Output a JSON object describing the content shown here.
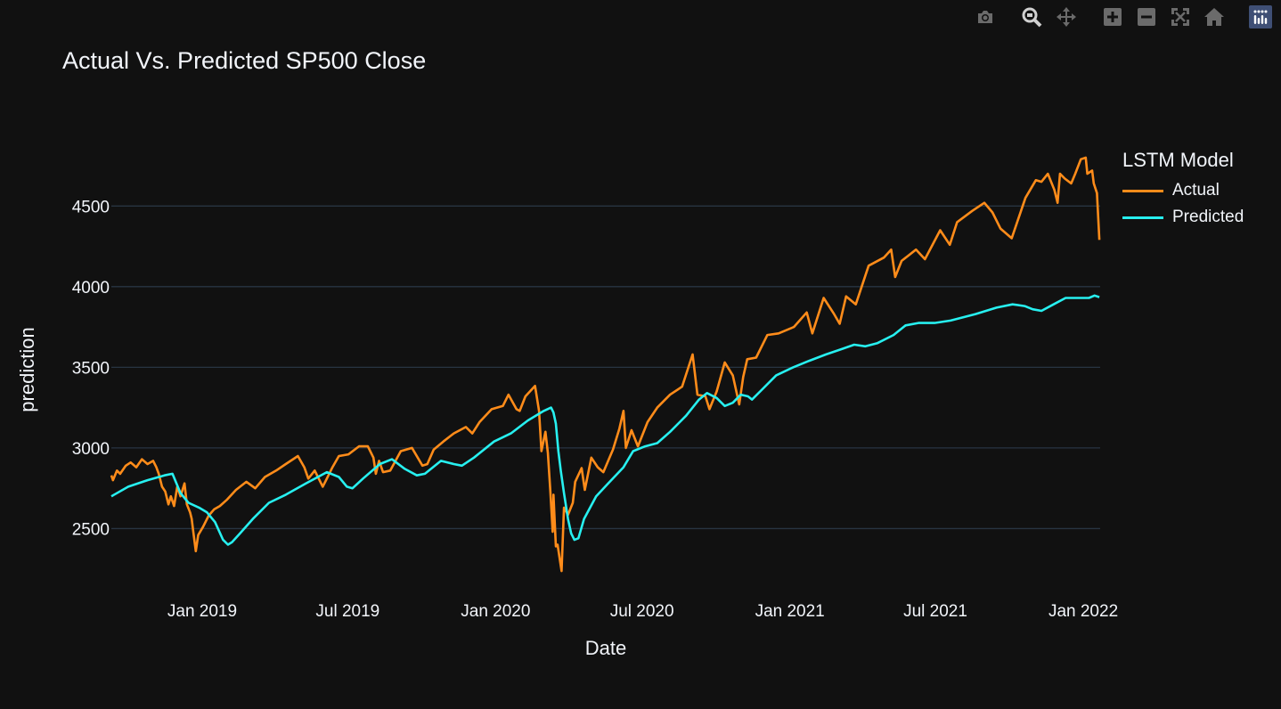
{
  "toolbar": {
    "buttons": [
      {
        "id": "camera",
        "icon": "camera-icon"
      },
      {
        "id": "zoom",
        "icon": "zoom-icon"
      },
      {
        "id": "pan",
        "icon": "pan-icon"
      },
      {
        "id": "zoom-in",
        "icon": "zoom-in-icon"
      },
      {
        "id": "zoom-out",
        "icon": "zoom-out-icon"
      },
      {
        "id": "autoscale",
        "icon": "autoscale-icon"
      },
      {
        "id": "reset",
        "icon": "home-icon"
      },
      {
        "id": "plotly-logo",
        "icon": "plotly-logo-icon"
      }
    ]
  },
  "colors": {
    "background": "#111111",
    "grid": "#283442",
    "text": "#f2f5fa",
    "actual": "#ff8c1a",
    "predicted": "#27f0f0",
    "modebar": "#6b6b6b",
    "logo": "#3f4f75"
  },
  "chart_data": {
    "type": "line",
    "title": "Actual Vs. Predicted SP500 Close",
    "xlabel": "Date",
    "ylabel": "prediction",
    "x_ticks": [
      "Jan 2019",
      "Jul 2019",
      "Jan 2020",
      "Jul 2020",
      "Jan 2021",
      "Jul 2021",
      "Jan 2022"
    ],
    "x_tick_values": [
      "2019-01-01",
      "2019-07-01",
      "2020-01-01",
      "2020-07-01",
      "2021-01-01",
      "2021-07-01",
      "2022-01-01"
    ],
    "y_ticks": [
      2500,
      3000,
      3500,
      4000,
      4500
    ],
    "xlim": [
      "2018-09-10",
      "2022-01-22"
    ],
    "ylim": [
      2160,
      4960
    ],
    "legend_title": "LSTM Model",
    "legend_position": "top-right",
    "series": [
      {
        "name": "Actual",
        "color": "#ff8c1a",
        "points": [
          [
            "2018-09-10",
            2830
          ],
          [
            "2018-09-12",
            2800
          ],
          [
            "2018-09-17",
            2860
          ],
          [
            "2018-09-21",
            2840
          ],
          [
            "2018-09-28",
            2890
          ],
          [
            "2018-10-04",
            2910
          ],
          [
            "2018-10-11",
            2880
          ],
          [
            "2018-10-18",
            2930
          ],
          [
            "2018-10-25",
            2900
          ],
          [
            "2018-11-01",
            2920
          ],
          [
            "2018-11-05",
            2880
          ],
          [
            "2018-11-08",
            2840
          ],
          [
            "2018-11-12",
            2760
          ],
          [
            "2018-11-16",
            2730
          ],
          [
            "2018-11-20",
            2650
          ],
          [
            "2018-11-23",
            2700
          ],
          [
            "2018-11-27",
            2640
          ],
          [
            "2018-12-01",
            2760
          ],
          [
            "2018-12-05",
            2700
          ],
          [
            "2018-12-10",
            2780
          ],
          [
            "2018-12-13",
            2650
          ],
          [
            "2018-12-17",
            2600
          ],
          [
            "2018-12-19",
            2560
          ],
          [
            "2018-12-21",
            2480
          ],
          [
            "2018-12-24",
            2360
          ],
          [
            "2018-12-27",
            2460
          ],
          [
            "2019-01-02",
            2510
          ],
          [
            "2019-01-09",
            2580
          ],
          [
            "2019-01-16",
            2620
          ],
          [
            "2019-01-23",
            2640
          ],
          [
            "2019-02-01",
            2680
          ],
          [
            "2019-02-12",
            2740
          ],
          [
            "2019-02-25",
            2790
          ],
          [
            "2019-03-08",
            2750
          ],
          [
            "2019-03-20",
            2820
          ],
          [
            "2019-04-03",
            2860
          ],
          [
            "2019-04-15",
            2900
          ],
          [
            "2019-04-30",
            2950
          ],
          [
            "2019-05-08",
            2880
          ],
          [
            "2019-05-13",
            2810
          ],
          [
            "2019-05-21",
            2860
          ],
          [
            "2019-05-31",
            2760
          ],
          [
            "2019-06-04",
            2800
          ],
          [
            "2019-06-12",
            2880
          ],
          [
            "2019-06-20",
            2950
          ],
          [
            "2019-07-02",
            2960
          ],
          [
            "2019-07-15",
            3010
          ],
          [
            "2019-07-26",
            3010
          ],
          [
            "2019-08-02",
            2940
          ],
          [
            "2019-08-05",
            2840
          ],
          [
            "2019-08-09",
            2920
          ],
          [
            "2019-08-14",
            2850
          ],
          [
            "2019-08-23",
            2860
          ],
          [
            "2019-09-05",
            2980
          ],
          [
            "2019-09-19",
            3000
          ],
          [
            "2019-10-02",
            2890
          ],
          [
            "2019-10-08",
            2900
          ],
          [
            "2019-10-16",
            2990
          ],
          [
            "2019-10-28",
            3040
          ],
          [
            "2019-11-10",
            3090
          ],
          [
            "2019-11-25",
            3130
          ],
          [
            "2019-12-03",
            3090
          ],
          [
            "2019-12-12",
            3160
          ],
          [
            "2019-12-27",
            3240
          ],
          [
            "2020-01-10",
            3260
          ],
          [
            "2020-01-17",
            3330
          ],
          [
            "2020-01-27",
            3240
          ],
          [
            "2020-01-31",
            3230
          ],
          [
            "2020-02-07",
            3320
          ],
          [
            "2020-02-19",
            3385
          ],
          [
            "2020-02-24",
            3230
          ],
          [
            "2020-02-27",
            2980
          ],
          [
            "2020-03-03",
            3100
          ],
          [
            "2020-03-06",
            2970
          ],
          [
            "2020-03-09",
            2740
          ],
          [
            "2020-03-12",
            2480
          ],
          [
            "2020-03-13",
            2710
          ],
          [
            "2020-03-16",
            2390
          ],
          [
            "2020-03-18",
            2400
          ],
          [
            "2020-03-23",
            2237
          ],
          [
            "2020-03-26",
            2630
          ],
          [
            "2020-03-31",
            2585
          ],
          [
            "2020-04-06",
            2660
          ],
          [
            "2020-04-09",
            2790
          ],
          [
            "2020-04-17",
            2875
          ],
          [
            "2020-04-21",
            2740
          ],
          [
            "2020-04-29",
            2940
          ],
          [
            "2020-05-07",
            2880
          ],
          [
            "2020-05-14",
            2850
          ],
          [
            "2020-05-26",
            2990
          ],
          [
            "2020-06-03",
            3120
          ],
          [
            "2020-06-08",
            3230
          ],
          [
            "2020-06-11",
            3000
          ],
          [
            "2020-06-18",
            3110
          ],
          [
            "2020-06-26",
            3010
          ],
          [
            "2020-07-08",
            3160
          ],
          [
            "2020-07-20",
            3250
          ],
          [
            "2020-08-05",
            3330
          ],
          [
            "2020-08-20",
            3380
          ],
          [
            "2020-09-02",
            3580
          ],
          [
            "2020-09-08",
            3330
          ],
          [
            "2020-09-18",
            3320
          ],
          [
            "2020-09-23",
            3240
          ],
          [
            "2020-10-02",
            3350
          ],
          [
            "2020-10-12",
            3530
          ],
          [
            "2020-10-22",
            3450
          ],
          [
            "2020-10-30",
            3270
          ],
          [
            "2020-11-04",
            3440
          ],
          [
            "2020-11-09",
            3550
          ],
          [
            "2020-11-20",
            3560
          ],
          [
            "2020-12-04",
            3700
          ],
          [
            "2020-12-18",
            3710
          ],
          [
            "2021-01-06",
            3750
          ],
          [
            "2021-01-22",
            3840
          ],
          [
            "2021-01-29",
            3710
          ],
          [
            "2021-02-12",
            3930
          ],
          [
            "2021-02-25",
            3830
          ],
          [
            "2021-03-04",
            3770
          ],
          [
            "2021-03-12",
            3940
          ],
          [
            "2021-03-24",
            3890
          ],
          [
            "2021-04-09",
            4130
          ],
          [
            "2021-04-28",
            4180
          ],
          [
            "2021-05-07",
            4230
          ],
          [
            "2021-05-12",
            4060
          ],
          [
            "2021-05-20",
            4160
          ],
          [
            "2021-06-07",
            4230
          ],
          [
            "2021-06-18",
            4170
          ],
          [
            "2021-07-07",
            4350
          ],
          [
            "2021-07-19",
            4260
          ],
          [
            "2021-07-28",
            4400
          ],
          [
            "2021-08-16",
            4470
          ],
          [
            "2021-08-31",
            4520
          ],
          [
            "2021-09-10",
            4460
          ],
          [
            "2021-09-20",
            4360
          ],
          [
            "2021-10-04",
            4300
          ],
          [
            "2021-10-21",
            4550
          ],
          [
            "2021-11-03",
            4660
          ],
          [
            "2021-11-10",
            4650
          ],
          [
            "2021-11-18",
            4700
          ],
          [
            "2021-11-26",
            4600
          ],
          [
            "2021-11-30",
            4520
          ],
          [
            "2021-12-03",
            4700
          ],
          [
            "2021-12-09",
            4670
          ],
          [
            "2021-12-17",
            4640
          ],
          [
            "2021-12-22",
            4700
          ],
          [
            "2021-12-29",
            4790
          ],
          [
            "2022-01-04",
            4800
          ],
          [
            "2022-01-06",
            4700
          ],
          [
            "2022-01-12",
            4720
          ],
          [
            "2022-01-14",
            4640
          ],
          [
            "2022-01-18",
            4580
          ],
          [
            "2022-01-21",
            4290
          ]
        ]
      },
      {
        "name": "Predicted",
        "color": "#27f0f0",
        "points": [
          [
            "2018-09-10",
            2700
          ],
          [
            "2018-10-01",
            2760
          ],
          [
            "2018-10-25",
            2800
          ],
          [
            "2018-11-15",
            2830
          ],
          [
            "2018-11-25",
            2840
          ],
          [
            "2018-12-05",
            2720
          ],
          [
            "2018-12-15",
            2660
          ],
          [
            "2018-12-28",
            2630
          ],
          [
            "2019-01-07",
            2600
          ],
          [
            "2019-01-17",
            2540
          ],
          [
            "2019-01-27",
            2430
          ],
          [
            "2019-02-02",
            2400
          ],
          [
            "2019-02-07",
            2415
          ],
          [
            "2019-02-17",
            2470
          ],
          [
            "2019-03-05",
            2560
          ],
          [
            "2019-03-25",
            2660
          ],
          [
            "2019-04-15",
            2710
          ],
          [
            "2019-05-10",
            2780
          ],
          [
            "2019-06-05",
            2850
          ],
          [
            "2019-06-20",
            2820
          ],
          [
            "2019-06-30",
            2760
          ],
          [
            "2019-07-07",
            2750
          ],
          [
            "2019-07-20",
            2810
          ],
          [
            "2019-08-10",
            2900
          ],
          [
            "2019-08-25",
            2930
          ],
          [
            "2019-09-10",
            2870
          ],
          [
            "2019-09-25",
            2830
          ],
          [
            "2019-10-05",
            2840
          ],
          [
            "2019-10-25",
            2920
          ],
          [
            "2019-11-10",
            2900
          ],
          [
            "2019-11-20",
            2890
          ],
          [
            "2019-12-05",
            2940
          ],
          [
            "2019-12-30",
            3040
          ],
          [
            "2020-01-20",
            3090
          ],
          [
            "2020-02-10",
            3170
          ],
          [
            "2020-03-01",
            3230
          ],
          [
            "2020-03-10",
            3250
          ],
          [
            "2020-03-13",
            3220
          ],
          [
            "2020-03-16",
            3150
          ],
          [
            "2020-03-19",
            2980
          ],
          [
            "2020-03-22",
            2860
          ],
          [
            "2020-03-26",
            2720
          ],
          [
            "2020-03-31",
            2560
          ],
          [
            "2020-04-04",
            2470
          ],
          [
            "2020-04-08",
            2430
          ],
          [
            "2020-04-13",
            2440
          ],
          [
            "2020-04-20",
            2560
          ],
          [
            "2020-05-05",
            2700
          ],
          [
            "2020-05-20",
            2780
          ],
          [
            "2020-06-08",
            2880
          ],
          [
            "2020-06-20",
            2980
          ],
          [
            "2020-07-05",
            3010
          ],
          [
            "2020-07-20",
            3030
          ],
          [
            "2020-08-05",
            3100
          ],
          [
            "2020-08-25",
            3200
          ],
          [
            "2020-09-10",
            3300
          ],
          [
            "2020-09-20",
            3340
          ],
          [
            "2020-10-02",
            3310
          ],
          [
            "2020-10-12",
            3260
          ],
          [
            "2020-10-22",
            3280
          ],
          [
            "2020-11-01",
            3330
          ],
          [
            "2020-11-10",
            3320
          ],
          [
            "2020-11-15",
            3300
          ],
          [
            "2020-11-25",
            3350
          ],
          [
            "2020-12-15",
            3450
          ],
          [
            "2021-01-05",
            3500
          ],
          [
            "2021-01-25",
            3540
          ],
          [
            "2021-02-15",
            3580
          ],
          [
            "2021-03-05",
            3610
          ],
          [
            "2021-03-22",
            3640
          ],
          [
            "2021-04-05",
            3630
          ],
          [
            "2021-04-20",
            3650
          ],
          [
            "2021-05-10",
            3700
          ],
          [
            "2021-05-25",
            3760
          ],
          [
            "2021-06-10",
            3775
          ],
          [
            "2021-06-30",
            3775
          ],
          [
            "2021-07-20",
            3790
          ],
          [
            "2021-08-20",
            3830
          ],
          [
            "2021-09-15",
            3870
          ],
          [
            "2021-10-05",
            3890
          ],
          [
            "2021-10-20",
            3880
          ],
          [
            "2021-10-30",
            3860
          ],
          [
            "2021-11-10",
            3850
          ],
          [
            "2021-11-25",
            3890
          ],
          [
            "2021-12-10",
            3930
          ],
          [
            "2021-12-30",
            3930
          ],
          [
            "2022-01-08",
            3930
          ],
          [
            "2022-01-15",
            3945
          ],
          [
            "2022-01-21",
            3935
          ]
        ]
      }
    ]
  }
}
